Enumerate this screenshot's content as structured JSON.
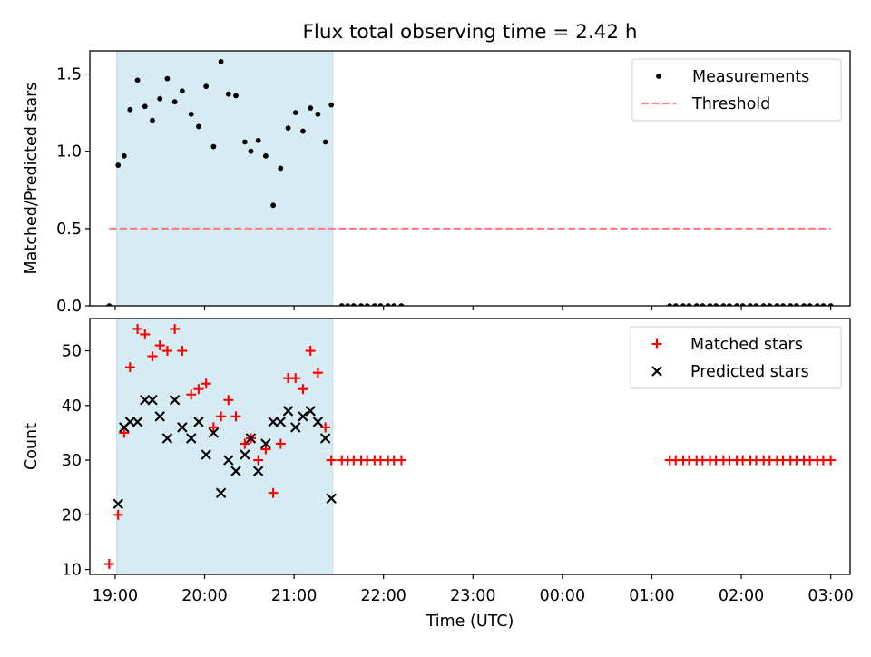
{
  "figure": {
    "title": "Flux total observing time = 2.42 h"
  },
  "chart_data": [
    {
      "type": "scatter",
      "ylabel": "Matched/Predicted stars",
      "xlabel": "",
      "xlim": [
        "18:43",
        "03:13"
      ],
      "ylim": [
        0,
        1.65
      ],
      "yticks": [
        0.0,
        0.5,
        1.0,
        1.5
      ],
      "ytick_labels": [
        "0.0",
        "0.5",
        "1.0",
        "1.5"
      ],
      "x_ticks": [
        "19:00",
        "20:00",
        "21:00",
        "22:00",
        "23:00",
        "00:00",
        "01:00",
        "02:00",
        "03:00"
      ],
      "shaded_span": {
        "from": "19:01",
        "to": "21:26",
        "color": "#add8e6"
      },
      "legend_position": "upper right",
      "series": [
        {
          "name": "Measurements",
          "style": "dot",
          "color": "#000000",
          "points": [
            [
              "18:56",
              0.0
            ],
            [
              "19:02",
              0.91
            ],
            [
              "19:06",
              0.97
            ],
            [
              "19:10",
              1.27
            ],
            [
              "19:15",
              1.46
            ],
            [
              "19:20",
              1.29
            ],
            [
              "19:25",
              1.2
            ],
            [
              "19:30",
              1.34
            ],
            [
              "19:35",
              1.47
            ],
            [
              "19:40",
              1.32
            ],
            [
              "19:45",
              1.39
            ],
            [
              "19:51",
              1.24
            ],
            [
              "19:56",
              1.16
            ],
            [
              "20:01",
              1.42
            ],
            [
              "20:06",
              1.03
            ],
            [
              "20:11",
              1.58
            ],
            [
              "20:16",
              1.37
            ],
            [
              "20:21",
              1.36
            ],
            [
              "20:27",
              1.06
            ],
            [
              "20:31",
              1.0
            ],
            [
              "20:36",
              1.07
            ],
            [
              "20:41",
              0.97
            ],
            [
              "20:46",
              0.65
            ],
            [
              "20:51",
              0.89
            ],
            [
              "20:56",
              1.15
            ],
            [
              "21:01",
              1.25
            ],
            [
              "21:06",
              1.13
            ],
            [
              "21:11",
              1.28
            ],
            [
              "21:16",
              1.24
            ],
            [
              "21:21",
              1.06
            ],
            [
              "21:25",
              1.3
            ],
            [
              "21:32",
              0.0
            ],
            [
              "21:36",
              0.0
            ],
            [
              "21:40",
              0.0
            ],
            [
              "21:45",
              0.0
            ],
            [
              "21:49",
              0.0
            ],
            [
              "21:54",
              0.0
            ],
            [
              "21:58",
              0.0
            ],
            [
              "22:03",
              0.0
            ],
            [
              "22:07",
              0.0
            ],
            [
              "22:12",
              0.0
            ],
            [
              "01:12",
              0.0
            ],
            [
              "01:16",
              0.0
            ],
            [
              "01:21",
              0.0
            ],
            [
              "01:25",
              0.0
            ],
            [
              "01:30",
              0.0
            ],
            [
              "01:34",
              0.0
            ],
            [
              "01:39",
              0.0
            ],
            [
              "01:43",
              0.0
            ],
            [
              "01:48",
              0.0
            ],
            [
              "01:52",
              0.0
            ],
            [
              "01:57",
              0.0
            ],
            [
              "02:01",
              0.0
            ],
            [
              "02:06",
              0.0
            ],
            [
              "02:10",
              0.0
            ],
            [
              "02:15",
              0.0
            ],
            [
              "02:19",
              0.0
            ],
            [
              "02:24",
              0.0
            ],
            [
              "02:28",
              0.0
            ],
            [
              "02:33",
              0.0
            ],
            [
              "02:37",
              0.0
            ],
            [
              "02:42",
              0.0
            ],
            [
              "02:46",
              0.0
            ],
            [
              "02:51",
              0.0
            ],
            [
              "02:55",
              0.0
            ],
            [
              "03:00",
              0.0
            ]
          ]
        },
        {
          "name": "Threshold",
          "style": "dashed-line",
          "color": "#ff7f7f",
          "points": [
            [
              "18:56",
              0.5
            ],
            [
              "03:00",
              0.5
            ]
          ]
        }
      ]
    },
    {
      "type": "scatter",
      "ylabel": "Count",
      "xlabel": "Time (UTC)",
      "xlim": [
        "18:43",
        "03:13"
      ],
      "ylim": [
        9.1,
        55.9
      ],
      "yticks": [
        10,
        20,
        30,
        40,
        50
      ],
      "ytick_labels": [
        "10",
        "20",
        "30",
        "40",
        "50"
      ],
      "x_ticks": [
        "19:00",
        "20:00",
        "21:00",
        "22:00",
        "23:00",
        "00:00",
        "01:00",
        "02:00",
        "03:00"
      ],
      "shaded_span": {
        "from": "19:01",
        "to": "21:26",
        "color": "#add8e6"
      },
      "legend_position": "upper right",
      "series": [
        {
          "name": "Matched stars",
          "style": "plus",
          "color": "#ff0000",
          "points": [
            [
              "18:56",
              11
            ],
            [
              "19:02",
              20
            ],
            [
              "19:06",
              35
            ],
            [
              "19:10",
              47
            ],
            [
              "19:15",
              54
            ],
            [
              "19:20",
              53
            ],
            [
              "19:25",
              49
            ],
            [
              "19:30",
              51
            ],
            [
              "19:35",
              50
            ],
            [
              "19:40",
              54
            ],
            [
              "19:45",
              50
            ],
            [
              "19:51",
              42
            ],
            [
              "19:56",
              43
            ],
            [
              "20:01",
              44
            ],
            [
              "20:06",
              36
            ],
            [
              "20:11",
              38
            ],
            [
              "20:16",
              41
            ],
            [
              "20:21",
              38
            ],
            [
              "20:27",
              33
            ],
            [
              "20:31",
              34
            ],
            [
              "20:36",
              30
            ],
            [
              "20:41",
              32
            ],
            [
              "20:46",
              24
            ],
            [
              "20:51",
              33
            ],
            [
              "20:56",
              45
            ],
            [
              "21:01",
              45
            ],
            [
              "21:06",
              43
            ],
            [
              "21:11",
              50
            ],
            [
              "21:16",
              46
            ],
            [
              "21:21",
              36
            ],
            [
              "21:25",
              30
            ],
            [
              "21:32",
              30
            ],
            [
              "21:36",
              30
            ],
            [
              "21:40",
              30
            ],
            [
              "21:45",
              30
            ],
            [
              "21:49",
              30
            ],
            [
              "21:54",
              30
            ],
            [
              "21:58",
              30
            ],
            [
              "22:03",
              30
            ],
            [
              "22:07",
              30
            ],
            [
              "22:12",
              30
            ],
            [
              "01:12",
              30
            ],
            [
              "01:16",
              30
            ],
            [
              "01:21",
              30
            ],
            [
              "01:25",
              30
            ],
            [
              "01:30",
              30
            ],
            [
              "01:34",
              30
            ],
            [
              "01:39",
              30
            ],
            [
              "01:43",
              30
            ],
            [
              "01:48",
              30
            ],
            [
              "01:52",
              30
            ],
            [
              "01:57",
              30
            ],
            [
              "02:01",
              30
            ],
            [
              "02:06",
              30
            ],
            [
              "02:10",
              30
            ],
            [
              "02:15",
              30
            ],
            [
              "02:19",
              30
            ],
            [
              "02:24",
              30
            ],
            [
              "02:28",
              30
            ],
            [
              "02:33",
              30
            ],
            [
              "02:37",
              30
            ],
            [
              "02:42",
              30
            ],
            [
              "02:46",
              30
            ],
            [
              "02:51",
              30
            ],
            [
              "02:55",
              30
            ],
            [
              "03:00",
              30
            ]
          ]
        },
        {
          "name": "Predicted stars",
          "style": "x",
          "color": "#000000",
          "points": [
            [
              "19:02",
              22
            ],
            [
              "19:06",
              36
            ],
            [
              "19:10",
              37
            ],
            [
              "19:15",
              37
            ],
            [
              "19:20",
              41
            ],
            [
              "19:25",
              41
            ],
            [
              "19:30",
              38
            ],
            [
              "19:35",
              34
            ],
            [
              "19:40",
              41
            ],
            [
              "19:45",
              36
            ],
            [
              "19:51",
              34
            ],
            [
              "19:56",
              37
            ],
            [
              "20:01",
              31
            ],
            [
              "20:06",
              35
            ],
            [
              "20:11",
              24
            ],
            [
              "20:16",
              30
            ],
            [
              "20:21",
              28
            ],
            [
              "20:27",
              31
            ],
            [
              "20:31",
              34
            ],
            [
              "20:36",
              28
            ],
            [
              "20:41",
              33
            ],
            [
              "20:46",
              37
            ],
            [
              "20:51",
              37
            ],
            [
              "20:56",
              39
            ],
            [
              "21:01",
              36
            ],
            [
              "21:06",
              38
            ],
            [
              "21:11",
              39
            ],
            [
              "21:16",
              37
            ],
            [
              "21:21",
              34
            ],
            [
              "21:25",
              23
            ]
          ]
        }
      ]
    }
  ]
}
